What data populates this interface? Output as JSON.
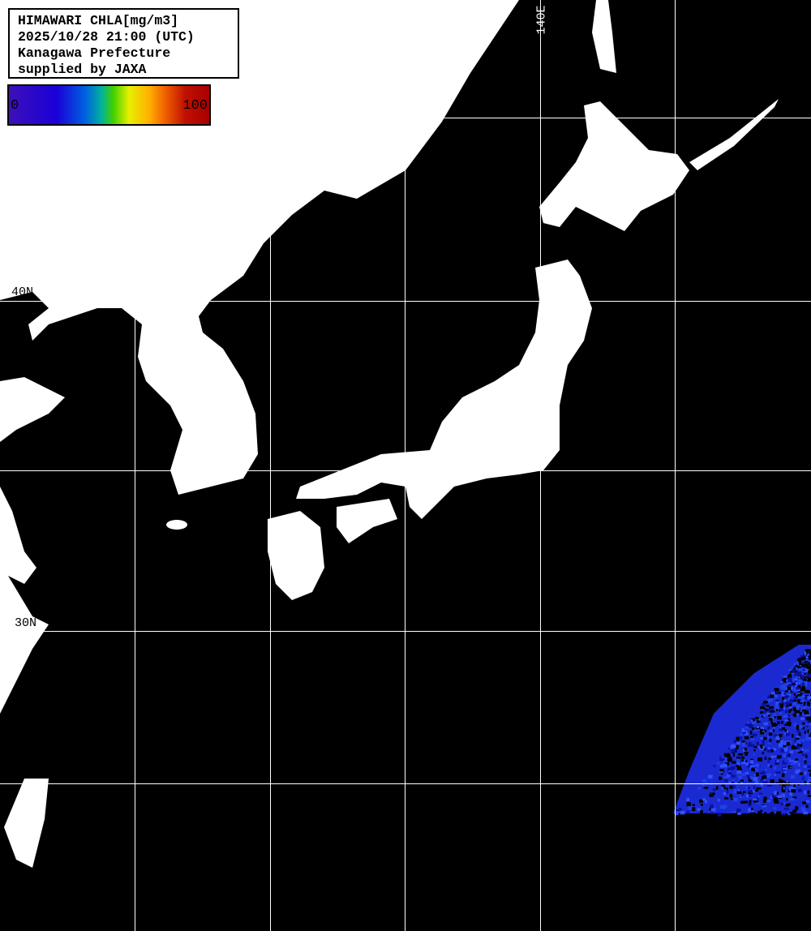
{
  "legend": {
    "title": "HIMAWARI CHLA[mg/m3]",
    "datetime": "2025/10/28 21:00 (UTC)",
    "region": "Kanagawa Prefecture",
    "credit": "supplied by JAXA"
  },
  "colorbar": {
    "min_label": "0",
    "max_label": "100",
    "colors": [
      "#3d10b8",
      "#1a00d8",
      "#0060e0",
      "#00b0a0",
      "#40d000",
      "#e8f000",
      "#ffb000",
      "#f06000",
      "#c01000",
      "#a80000"
    ]
  },
  "grid_labels": {
    "lat_40": "40N",
    "lat_30": "30N",
    "lon_140": "140E"
  },
  "colors": {
    "land": "#ffffff",
    "no_data": "#000000",
    "grid": "#ffffff",
    "chla_low": "#1a2ad0"
  }
}
